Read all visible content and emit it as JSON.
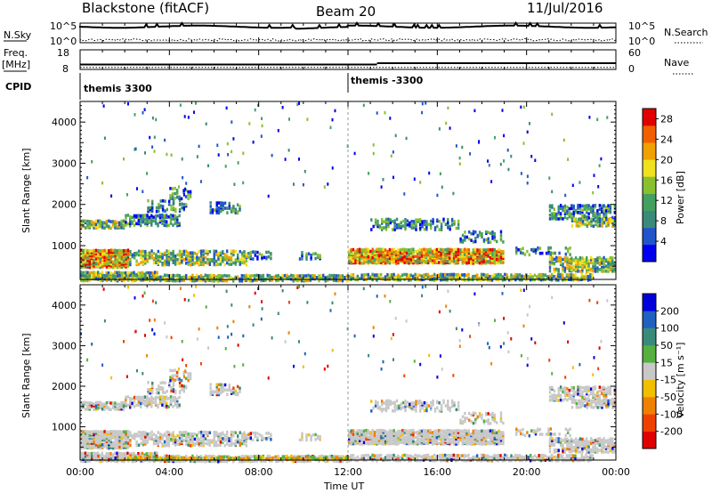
{
  "header": {
    "station": "Blackstone (fitACF)",
    "beam": "Beam 20",
    "date": "11/Jul/2016"
  },
  "params_panel": {
    "nsky_label": "N.Sky",
    "nsearch_label": "N.Search",
    "freq_label_1": "Freq.",
    "freq_label_2": "[MHz]",
    "nave_label": "Nave",
    "cpid_label": "CPID",
    "count_ticks_left": [
      "10^5",
      "10^0"
    ],
    "count_ticks_right": [
      "10^5",
      "10^0"
    ],
    "freq_ticks": [
      "18",
      "8"
    ],
    "nave_ticks": [
      "60",
      "0"
    ],
    "freq_mhz": 10.5,
    "nave": 6,
    "cpid_segments": [
      {
        "label": "themis 3300",
        "start_hour": 0,
        "end_hour": 12
      },
      {
        "label": "themis -3300",
        "start_hour": 12,
        "end_hour": 24
      }
    ]
  },
  "chart_data": [
    {
      "type": "heatmap",
      "quantity": "Power",
      "ylabel": "Slant Range [km]",
      "xlabel": "Time UT",
      "x_ticks": [
        "00:00",
        "04:00",
        "08:00",
        "12:00",
        "16:00",
        "20:00",
        "00:00"
      ],
      "y_ticks": [
        "1000",
        "2000",
        "3000",
        "4000"
      ],
      "xlim_hours": [
        0,
        24
      ],
      "ylim_km": [
        180,
        4500
      ],
      "colorbar": {
        "label": "Power [dB]",
        "ticks": [
          "4",
          "8",
          "12",
          "16",
          "20",
          "24",
          "28"
        ],
        "range": [
          0,
          30
        ],
        "colors": [
          "#0000ee",
          "#2255cc",
          "#3a8a7a",
          "#44a060",
          "#88c030",
          "#f0e020",
          "#f0a000",
          "#f06000",
          "#e00000"
        ]
      }
    },
    {
      "type": "heatmap",
      "quantity": "Velocity",
      "ylabel": "Slant Range [km]",
      "xlabel": "Time UT",
      "x_ticks": [
        "00:00",
        "04:00",
        "08:00",
        "12:00",
        "16:00",
        "20:00",
        "00:00"
      ],
      "y_ticks": [
        "1000",
        "2000",
        "3000",
        "4000"
      ],
      "xlim_hours": [
        0,
        24
      ],
      "ylim_km": [
        180,
        4500
      ],
      "colorbar": {
        "label": "Velocity [m s⁻¹]",
        "ticks": [
          "200",
          "100",
          "50",
          "15",
          "-15",
          "-50",
          "-100",
          "-200"
        ],
        "colors": [
          "#0000dd",
          "#2060c0",
          "#3a8a7a",
          "#55b040",
          "#c8c8c8",
          "#f0c000",
          "#f08000",
          "#f04000",
          "#e00000"
        ]
      }
    }
  ],
  "axis": {
    "time_label": "Time UT",
    "x_ticks": [
      "00:00",
      "04:00",
      "08:00",
      "12:00",
      "16:00",
      "20:00",
      "00:00"
    ]
  }
}
